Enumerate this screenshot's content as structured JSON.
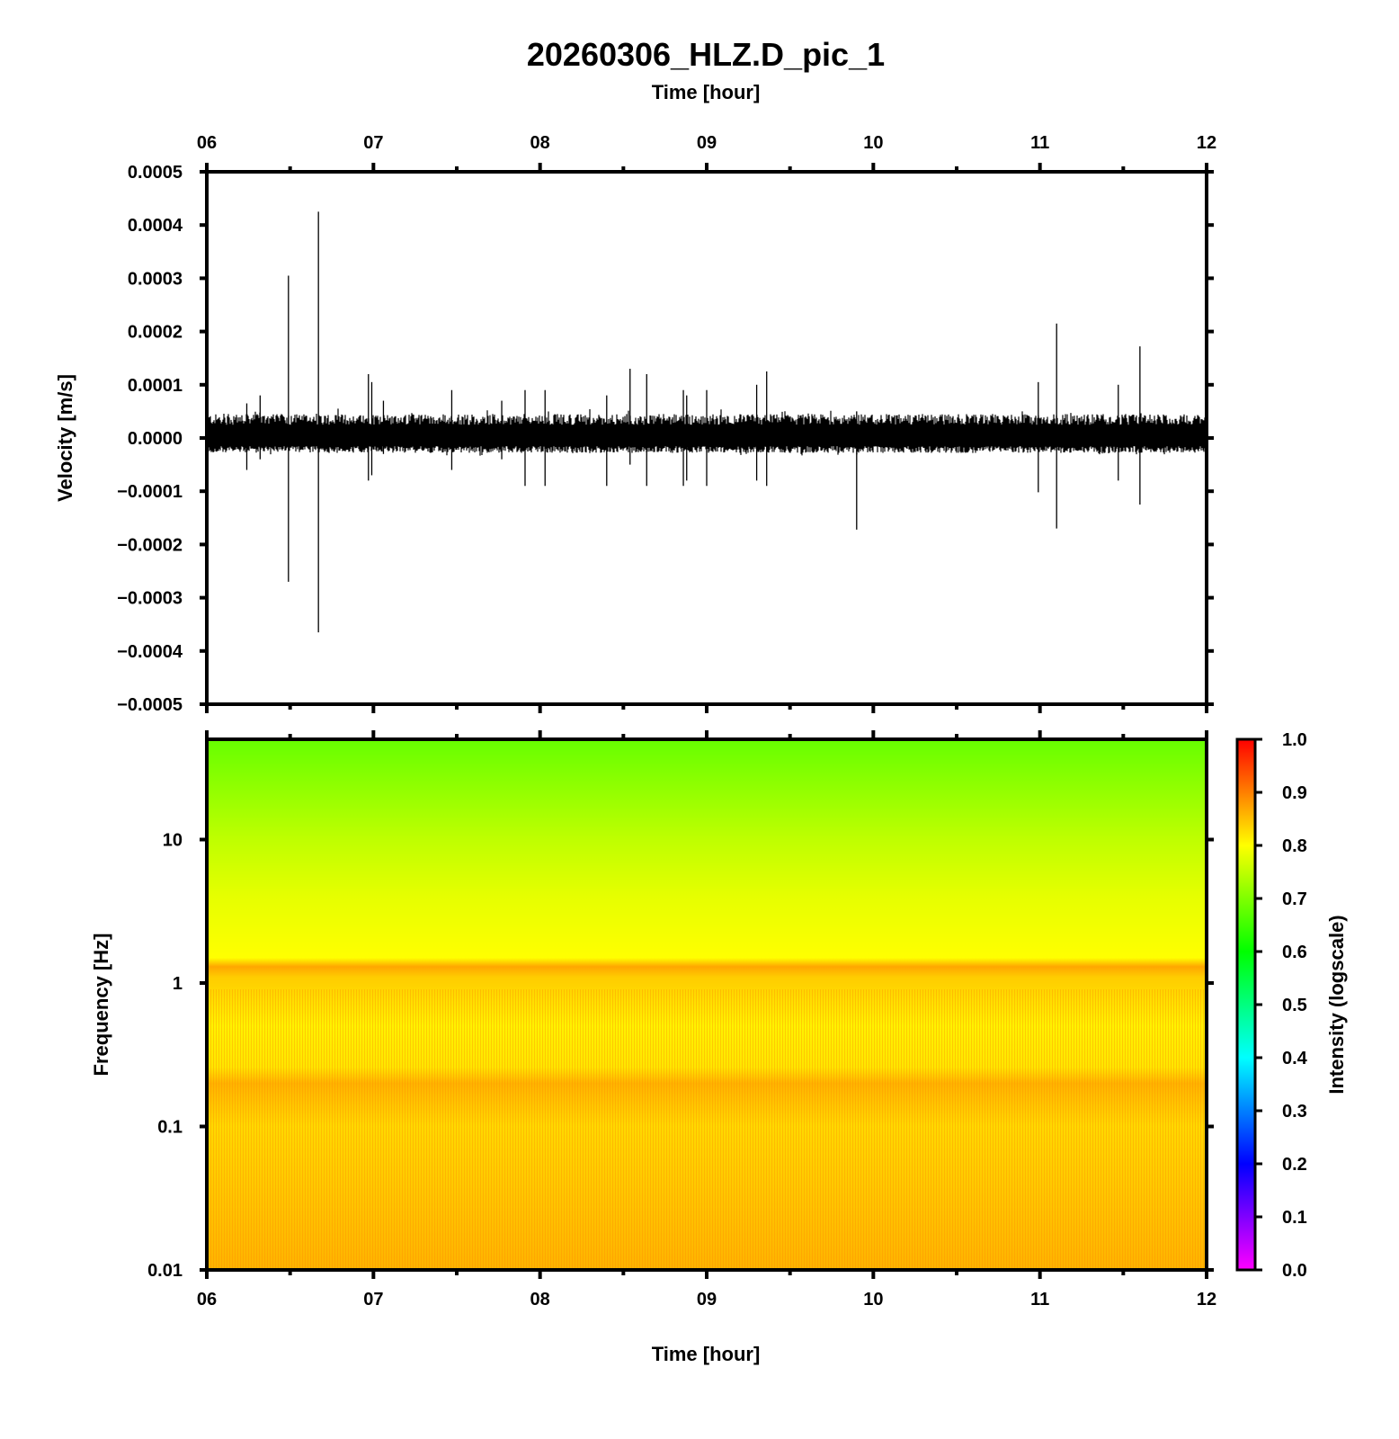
{
  "chart_data": [
    {
      "type": "line",
      "title": "20260306_HLZ.D_pic_1",
      "xlabel": "Time [hour]",
      "ylabel": "Velocity [m/s]",
      "xlim": [
        6,
        12
      ],
      "ylim": [
        -0.0005,
        0.0005
      ],
      "x_ticks": [
        "06",
        "07",
        "08",
        "09",
        "10",
        "11",
        "12"
      ],
      "y_ticks": [
        "0.0005",
        "0.0004",
        "0.0003",
        "0.0002",
        "0.0001",
        "0.0000",
        "−0.0001",
        "−0.0002",
        "−0.0003",
        "−0.0004",
        "−0.0005"
      ],
      "y_tick_values": [
        0.0005,
        0.0004,
        0.0003,
        0.0002,
        0.0001,
        0,
        -0.0001,
        -0.0002,
        -0.0003,
        -0.0004,
        -0.0005
      ],
      "series": [
        {
          "noise_band": [
            -2.8e-05,
            4.5e-05
          ],
          "spikes": [
            {
              "x": 6.24,
              "max": 6.5e-05,
              "min": -6e-05
            },
            {
              "x": 6.32,
              "max": 8e-05,
              "min": -4e-05
            },
            {
              "x": 6.49,
              "max": 0.000305,
              "min": -0.00027
            },
            {
              "x": 6.67,
              "max": 0.000425,
              "min": -0.000365
            },
            {
              "x": 6.97,
              "max": 0.00012,
              "min": -8e-05
            },
            {
              "x": 6.99,
              "max": 0.000105,
              "min": -7e-05
            },
            {
              "x": 7.06,
              "max": 7e-05,
              "min": -3e-05
            },
            {
              "x": 7.47,
              "max": 9e-05,
              "min": -6e-05
            },
            {
              "x": 7.77,
              "max": 7e-05,
              "min": -4e-05
            },
            {
              "x": 7.91,
              "max": 9e-05,
              "min": -9e-05
            },
            {
              "x": 8.03,
              "max": 9e-05,
              "min": -9e-05
            },
            {
              "x": 8.4,
              "max": 8e-05,
              "min": -9e-05
            },
            {
              "x": 8.54,
              "max": 0.00013,
              "min": -5e-05
            },
            {
              "x": 8.64,
              "max": 0.00012,
              "min": -9e-05
            },
            {
              "x": 8.86,
              "max": 9e-05,
              "min": -9e-05
            },
            {
              "x": 8.88,
              "max": 8e-05,
              "min": -8e-05
            },
            {
              "x": 9.0,
              "max": 9e-05,
              "min": -9e-05
            },
            {
              "x": 9.3,
              "max": 0.0001,
              "min": -8e-05
            },
            {
              "x": 9.36,
              "max": 0.000125,
              "min": -9e-05
            },
            {
              "x": 9.9,
              "max": 5e-05,
              "min": -0.000172
            },
            {
              "x": 10.99,
              "max": 0.000105,
              "min": -0.000102
            },
            {
              "x": 11.1,
              "max": 0.000215,
              "min": -0.00017
            },
            {
              "x": 11.47,
              "max": 0.0001,
              "min": -8e-05
            },
            {
              "x": 11.6,
              "max": 0.000172,
              "min": -0.000125
            }
          ]
        }
      ]
    },
    {
      "type": "heatmap",
      "xlabel": "Time [hour]",
      "ylabel": "Frequency [Hz]",
      "xlim": [
        6,
        12
      ],
      "ylim": [
        0.01,
        50
      ],
      "yscale": "log",
      "x_ticks": [
        "06",
        "07",
        "08",
        "09",
        "10",
        "11",
        "12"
      ],
      "y_ticks": [
        "10",
        "1",
        "0.1",
        "0.01"
      ],
      "y_tick_values": [
        10,
        1,
        0.1,
        0.01
      ],
      "intensity_profile": [
        {
          "freq": 50,
          "value": 0.68
        },
        {
          "freq": 25,
          "value": 0.71
        },
        {
          "freq": 10,
          "value": 0.75
        },
        {
          "freq": 4,
          "value": 0.78
        },
        {
          "freq": 1.5,
          "value": 0.8
        },
        {
          "freq": 1.3,
          "value": 0.87
        },
        {
          "freq": 1.1,
          "value": 0.84
        },
        {
          "freq": 0.5,
          "value": 0.81
        },
        {
          "freq": 0.26,
          "value": 0.82
        },
        {
          "freq": 0.2,
          "value": 0.86
        },
        {
          "freq": 0.1,
          "value": 0.83
        },
        {
          "freq": 0.01,
          "value": 0.86
        }
      ],
      "colorbar": {
        "label": "Intensity (logscale)",
        "range": [
          0,
          1
        ],
        "ticks": [
          "1.0",
          "0.9",
          "0.8",
          "0.7",
          "0.6",
          "0.5",
          "0.4",
          "0.3",
          "0.2",
          "0.1",
          "0.0"
        ],
        "tick_values": [
          1.0,
          0.9,
          0.8,
          0.7,
          0.6,
          0.5,
          0.4,
          0.3,
          0.2,
          0.1,
          0.0
        ],
        "colors": [
          "#ff00ff",
          "#0000ff",
          "#00ffff",
          "#00ff00",
          "#ffff00",
          "#ff0000"
        ]
      }
    }
  ]
}
